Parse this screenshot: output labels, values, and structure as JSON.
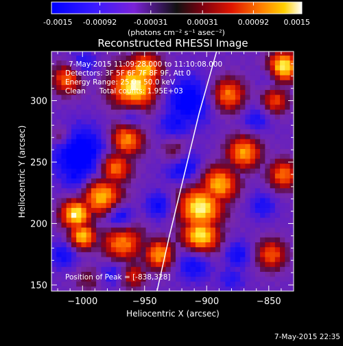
{
  "chart_data": {
    "type": "heatmap",
    "title": "Reconstructed RHESSI Image",
    "colorbar": {
      "ticks": [
        "-0.0015",
        "-0.00092",
        "-0.00031",
        "0.00031",
        "0.00092",
        "0.0015"
      ],
      "tick_values": [
        -0.0015,
        -0.00092,
        -0.00031,
        0.00031,
        0.00092,
        0.0015
      ],
      "label": "(photons cm⁻² s⁻¹ asec⁻²)",
      "range": [
        -0.0015,
        0.0015
      ]
    },
    "xlabel": "Heliocentric X (arcsec)",
    "ylabel": "Heliocentric Y (arcsec)",
    "xlim": [
      -1025,
      -830
    ],
    "ylim": [
      145,
      340
    ],
    "xticks": [
      -1000,
      -950,
      -900,
      -850
    ],
    "yticks": [
      150,
      200,
      250,
      300
    ],
    "xtick_labels": [
      "−1000",
      "−950",
      "−900",
      "−850"
    ],
    "ytick_labels": [
      "150",
      "200",
      "250",
      "300"
    ],
    "annotations": [
      "7-May-2015 11:09:28.000 to 11:10:08.000",
      "Detectors: 3F 5F 6F 7F 8F 9F, Att 0",
      "Energy Range: 25.0 - 50.0 keV",
      "Clean      Total counts: 1.95E+03"
    ],
    "peak_label": "Position of Peak = [-838,328]",
    "peak_position": [
      -838,
      328
    ],
    "limb_curve": [
      [
        -940,
        145
      ],
      [
        -930,
        190
      ],
      [
        -918,
        240
      ],
      [
        -906,
        290
      ],
      [
        -892,
        340
      ]
    ],
    "blobs": [
      {
        "x": -958,
        "y": 312,
        "v": 1.0,
        "s": 14
      },
      {
        "x": -950,
        "y": 325,
        "v": 0.9,
        "s": 10
      },
      {
        "x": -838,
        "y": 328,
        "v": 1.0,
        "s": 9
      },
      {
        "x": -1012,
        "y": 318,
        "v": 0.7,
        "s": 9
      },
      {
        "x": -1005,
        "y": 208,
        "v": 1.0,
        "s": 9
      },
      {
        "x": -1000,
        "y": 190,
        "v": 0.9,
        "s": 8
      },
      {
        "x": -985,
        "y": 223,
        "v": 0.9,
        "s": 12
      },
      {
        "x": -975,
        "y": 246,
        "v": 0.85,
        "s": 10
      },
      {
        "x": -965,
        "y": 268,
        "v": 0.8,
        "s": 10
      },
      {
        "x": -968,
        "y": 185,
        "v": 0.75,
        "s": 12
      },
      {
        "x": -938,
        "y": 175,
        "v": 0.8,
        "s": 9
      },
      {
        "x": -905,
        "y": 213,
        "v": 1.0,
        "s": 13
      },
      {
        "x": -905,
        "y": 190,
        "v": 1.0,
        "s": 11
      },
      {
        "x": -890,
        "y": 232,
        "v": 0.85,
        "s": 11
      },
      {
        "x": -870,
        "y": 258,
        "v": 0.8,
        "s": 10
      },
      {
        "x": -883,
        "y": 305,
        "v": 0.75,
        "s": 10
      },
      {
        "x": -845,
        "y": 300,
        "v": 0.6,
        "s": 8
      },
      {
        "x": -838,
        "y": 240,
        "v": 0.7,
        "s": 9
      },
      {
        "x": -848,
        "y": 175,
        "v": 0.65,
        "s": 9
      },
      {
        "x": -925,
        "y": 257,
        "v": 0.5,
        "s": 8
      },
      {
        "x": -960,
        "y": 158,
        "v": 0.55,
        "s": 8
      },
      {
        "x": -995,
        "y": 155,
        "v": 0.3,
        "s": 8
      },
      {
        "x": -1018,
        "y": 272,
        "v": 0.35,
        "s": 6
      },
      {
        "x": -1000,
        "y": 255,
        "v": -1.0,
        "s": 16
      },
      {
        "x": -1003,
        "y": 240,
        "v": -0.8,
        "s": 10
      },
      {
        "x": -915,
        "y": 300,
        "v": -0.85,
        "s": 14
      },
      {
        "x": -925,
        "y": 283,
        "v": -0.6,
        "s": 10
      },
      {
        "x": -920,
        "y": 248,
        "v": -0.8,
        "s": 10
      },
      {
        "x": -910,
        "y": 168,
        "v": -0.7,
        "s": 10
      },
      {
        "x": -875,
        "y": 175,
        "v": -0.6,
        "s": 8
      },
      {
        "x": -970,
        "y": 205,
        "v": -0.75,
        "s": 8
      },
      {
        "x": -938,
        "y": 215,
        "v": -0.65,
        "s": 8
      },
      {
        "x": -975,
        "y": 160,
        "v": -0.5,
        "s": 8
      },
      {
        "x": -855,
        "y": 215,
        "v": -0.5,
        "s": 8
      },
      {
        "x": -860,
        "y": 285,
        "v": -0.5,
        "s": 8
      },
      {
        "x": -1000,
        "y": 330,
        "v": -0.55,
        "s": 8
      },
      {
        "x": -1015,
        "y": 175,
        "v": -0.6,
        "s": 8
      },
      {
        "x": -960,
        "y": 288,
        "v": -0.5,
        "s": 7
      },
      {
        "x": -880,
        "y": 155,
        "v": -0.4,
        "s": 8
      },
      {
        "x": -850,
        "y": 320,
        "v": -0.3,
        "s": 6
      }
    ],
    "base_level": -0.35
  },
  "footer": {
    "timestamp": "7-May-2015 22:35"
  }
}
